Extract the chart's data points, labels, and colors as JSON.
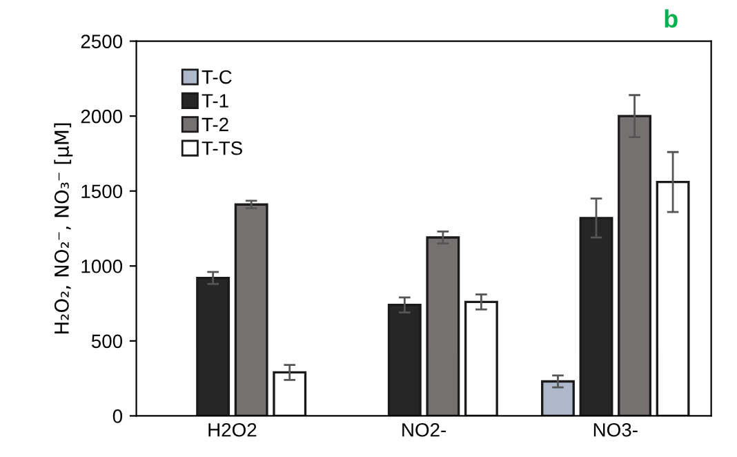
{
  "chart_data": {
    "type": "bar",
    "ylabel": "H₂O₂, NO₂⁻, NO₃⁻ [µM]",
    "annotations": [
      "b"
    ],
    "categories": [
      "H2O2",
      "NO2-",
      "NO3-"
    ],
    "series": [
      {
        "name": "T-C",
        "color": "#adb9ca",
        "values": [
          null,
          null,
          230
        ],
        "errors": [
          null,
          null,
          40
        ]
      },
      {
        "name": "T-1",
        "color": "#262626",
        "values": [
          920,
          740,
          1320
        ],
        "errors": [
          40,
          50,
          130
        ]
      },
      {
        "name": "T-2",
        "color": "#767171",
        "values": [
          1410,
          1190,
          2000
        ],
        "errors": [
          25,
          40,
          140
        ]
      },
      {
        "name": "T-TS",
        "color": "#ffffff",
        "values": [
          290,
          760,
          1560
        ],
        "errors": [
          50,
          50,
          200
        ]
      }
    ],
    "ylim": [
      0,
      2500
    ],
    "yticks": [
      0,
      500,
      1000,
      1500,
      2000,
      2500
    ],
    "grid": false,
    "legend": "top left"
  }
}
